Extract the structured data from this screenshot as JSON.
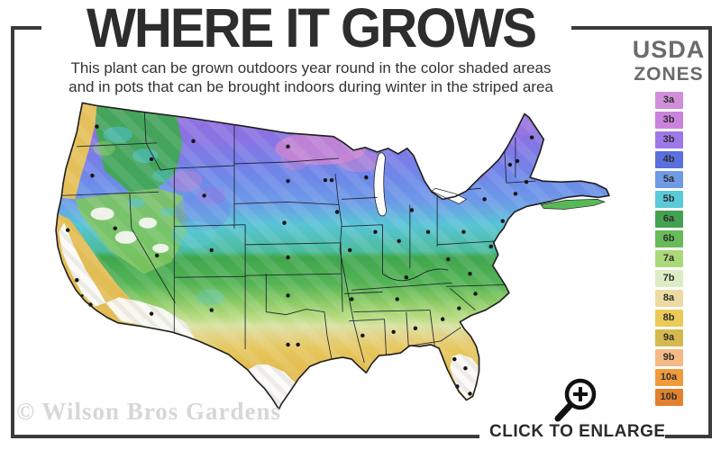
{
  "header": {
    "title": "WHERE IT GROWS",
    "subtitle_line1": "This plant can be grown outdoors year round in the color shaded areas",
    "subtitle_line2": "and in pots that can be brought indoors during winter in the striped area"
  },
  "legend": {
    "title_line1": "USDA",
    "title_line2": "ZONES",
    "zones": [
      {
        "label": "3a",
        "color": "#d08fd9"
      },
      {
        "label": "3b",
        "color": "#cb82dd"
      },
      {
        "label": "3b",
        "color": "#9e78e8"
      },
      {
        "label": "4b",
        "color": "#5a70dc"
      },
      {
        "label": "5a",
        "color": "#6f9ae6"
      },
      {
        "label": "5b",
        "color": "#5ac9d8"
      },
      {
        "label": "6a",
        "color": "#43a151"
      },
      {
        "label": "6b",
        "color": "#67bb59"
      },
      {
        "label": "7a",
        "color": "#abd97a"
      },
      {
        "label": "7b",
        "color": "#dcedc5"
      },
      {
        "label": "8a",
        "color": "#ebdaa1"
      },
      {
        "label": "8b",
        "color": "#eaca59"
      },
      {
        "label": "9a",
        "color": "#d5b94f"
      },
      {
        "label": "9b",
        "color": "#f5ba84"
      },
      {
        "label": "10a",
        "color": "#f09b3a"
      },
      {
        "label": "10b",
        "color": "#e2822e"
      }
    ]
  },
  "footer": {
    "watermark": "© Wilson Bros Gardens",
    "cta": "CLICK TO ENLARGE"
  },
  "colors": {
    "frame": "#3b3b3b",
    "title_text": "#2d2d2d",
    "legend_header_text": "#6b6b6b",
    "watermark_text": "#d7d7d7"
  }
}
